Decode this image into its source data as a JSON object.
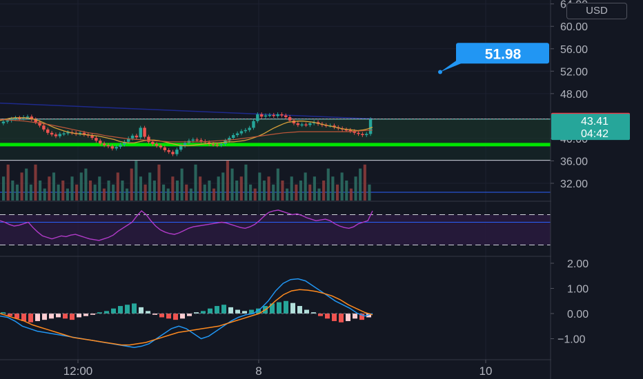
{
  "chart_data": {
    "type": "candlestick",
    "currency": "USD",
    "price_axis_labels": [
      "64.00",
      "60.00",
      "56.00",
      "52.00",
      "48.00",
      "40.00",
      "36.00",
      "32.00"
    ],
    "price_axis_values": [
      64,
      60,
      56,
      52,
      48,
      40,
      36,
      32
    ],
    "ylim": [
      28.8,
      64.7
    ],
    "time_axis_labels": [
      "12:00",
      "8",
      "10"
    ],
    "tags": {
      "high": {
        "label": "43.46",
        "value": 43.46,
        "color": "#f23645"
      },
      "last": {
        "label": "43.41",
        "value": 43.41,
        "countdown": "04:42",
        "color": "#26a69a"
      }
    },
    "target_callout": {
      "label": "51.98",
      "value": 51.98,
      "color": "#2196f3"
    },
    "horizontal_levels": [
      {
        "value": 43.46,
        "color": "#d1d4dc",
        "style": "solid"
      },
      {
        "value": 38.9,
        "color": "#00e600",
        "style": "thick"
      },
      {
        "value": 36.1,
        "color": "#d1d4dc",
        "style": "solid"
      },
      {
        "value": 30.4,
        "color": "#2962ff",
        "style": "solid"
      }
    ],
    "trendline": {
      "start": 46.3,
      "end": 43.5,
      "color": "#1e2a8c"
    },
    "closes": [
      43.0,
      43.2,
      43.5,
      43.7,
      43.6,
      43.8,
      43.9,
      43.4,
      42.9,
      42.3,
      41.6,
      41.0,
      40.7,
      40.4,
      40.8,
      40.9,
      41.1,
      41.0,
      40.8,
      41.0,
      40.7,
      40.5,
      40.1,
      39.6,
      39.1,
      38.8,
      38.6,
      38.2,
      38.5,
      38.9,
      39.4,
      40.0,
      40.5,
      40.2,
      41.9,
      40.3,
      39.4,
      39.0,
      38.7,
      38.4,
      37.9,
      37.6,
      37.2,
      38.0,
      38.7,
      39.2,
      39.6,
      39.8,
      39.7,
      39.5,
      39.3,
      39.0,
      38.9,
      38.8,
      39.0,
      39.6,
      40.1,
      40.6,
      40.9,
      41.3,
      41.5,
      41.9,
      43.1,
      44.3,
      43.9,
      44.1,
      44.2,
      44.0,
      44.3,
      44.1,
      43.8,
      43.2,
      42.7,
      42.4,
      42.5,
      42.4,
      42.7,
      42.9,
      42.6,
      42.4,
      42.3,
      42.3,
      42.0,
      41.8,
      41.6,
      41.5,
      41.3,
      41.0,
      40.8,
      40.6,
      40.8,
      43.41
    ],
    "ma_fast": [
      43.2,
      43.4,
      43.6,
      43.7,
      43.7,
      43.7,
      43.6,
      43.4,
      43.1,
      42.7,
      42.3,
      41.9,
      41.6,
      41.3,
      41.1,
      40.9,
      40.8,
      40.7,
      40.6,
      40.5,
      40.4,
      40.2,
      40.0,
      39.8,
      39.5,
      39.3,
      39.2,
      39.2,
      39.4,
      39.6,
      39.7,
      39.7,
      39.6,
      39.4,
      39.2,
      39.0,
      38.8,
      38.7,
      38.7,
      38.8,
      38.9,
      39.0,
      39.1,
      39.2,
      39.2,
      39.3,
      39.4,
      39.4,
      39.5,
      39.6,
      39.8,
      40.1,
      40.4,
      40.8,
      41.3,
      41.8,
      42.2,
      42.6,
      42.9,
      43.0,
      43.1,
      43.1,
      43.0,
      42.9,
      42.7,
      42.5,
      42.3,
      42.1,
      41.9,
      41.7,
      41.6,
      41.5,
      41.4,
      41.5,
      41.7,
      42.0
    ],
    "ma_slow": [
      43.4,
      43.3,
      43.2,
      43.1,
      42.9,
      42.7,
      42.5,
      42.2,
      41.9,
      41.6,
      41.3,
      41.0,
      40.8,
      40.5,
      40.3,
      40.1,
      39.9,
      39.8,
      39.7,
      39.6,
      39.5,
      39.4,
      39.4,
      39.4,
      39.4,
      39.4,
      39.5,
      39.6,
      39.7,
      39.8,
      40.0,
      40.2,
      40.4,
      40.6,
      40.8,
      41.0,
      41.1,
      41.2,
      41.2,
      41.2,
      41.2,
      41.2,
      41.2,
      41.2,
      41.3,
      41.4,
      41.5
    ],
    "volume": [
      6,
      9,
      5,
      4,
      7,
      8,
      4,
      9,
      5,
      3,
      6,
      7,
      4,
      5,
      3,
      6,
      4,
      7,
      8,
      5,
      4,
      6,
      3,
      5,
      4,
      7,
      5,
      3,
      8,
      10,
      6,
      4,
      7,
      5,
      9,
      4,
      3,
      6,
      5,
      8,
      4,
      3,
      9,
      6,
      4,
      5,
      3,
      6,
      7,
      10,
      8,
      5,
      6,
      9,
      4,
      3,
      7,
      5,
      6,
      4,
      8,
      5,
      3,
      6,
      4,
      5,
      7,
      4,
      6,
      3,
      5,
      8,
      6,
      4,
      7,
      5,
      3,
      6,
      8,
      9,
      4
    ],
    "rsi": [
      62,
      60,
      57,
      55,
      56,
      58,
      60,
      53,
      47,
      42,
      40,
      38,
      40,
      42,
      41,
      43,
      44,
      42,
      40,
      38,
      37,
      36,
      38,
      40,
      43,
      48,
      52,
      56,
      60,
      68,
      75,
      70,
      62,
      55,
      50,
      47,
      45,
      44,
      46,
      49,
      52,
      54,
      55,
      56,
      57,
      58,
      59,
      60,
      59,
      57,
      55,
      53,
      52,
      54,
      57,
      62,
      68,
      73,
      75,
      76,
      74,
      72,
      70,
      71,
      69,
      66,
      64,
      62,
      63,
      64,
      62,
      58,
      55,
      53,
      52,
      54,
      58,
      60,
      62,
      75
    ],
    "rsi_bands": [
      70,
      30
    ],
    "macd_axis_labels": [
      "2.00",
      "1.00",
      "0.00",
      "−1.00"
    ],
    "macd_axis_values": [
      2,
      1,
      0,
      -1
    ],
    "macd": [
      -0.1,
      -0.15,
      -0.3,
      -0.5,
      -0.6,
      -0.7,
      -0.75,
      -0.8,
      -0.85,
      -0.9,
      -0.95,
      -1.0,
      -1.05,
      -1.1,
      -1.15,
      -1.2,
      -1.25,
      -1.3,
      -1.35,
      -1.3,
      -1.2,
      -1.0,
      -0.8,
      -0.6,
      -0.5,
      -0.6,
      -0.8,
      -1.0,
      -0.9,
      -0.7,
      -0.5,
      -0.3,
      -0.15,
      -0.05,
      0.0,
      0.2,
      0.5,
      0.9,
      1.2,
      1.35,
      1.38,
      1.3,
      1.1,
      0.9,
      0.7,
      0.5,
      0.35,
      0.2,
      0.0,
      -0.1,
      0.0
    ],
    "macd_signal": [
      0.0,
      -0.1,
      -0.2,
      -0.3,
      -0.45,
      -0.55,
      -0.65,
      -0.75,
      -0.85,
      -0.95,
      -1.0,
      -1.05,
      -1.1,
      -1.15,
      -1.2,
      -1.25,
      -1.25,
      -1.2,
      -1.15,
      -1.05,
      -0.95,
      -0.85,
      -0.75,
      -0.7,
      -0.65,
      -0.6,
      -0.55,
      -0.5,
      -0.4,
      -0.3,
      -0.2,
      -0.1,
      0.0,
      0.2,
      0.5,
      0.75,
      0.9,
      0.95,
      0.93,
      0.88,
      0.8,
      0.7,
      0.55,
      0.35,
      0.2,
      0.05,
      -0.05
    ],
    "macd_hist": [
      0.05,
      -0.1,
      -0.2,
      -0.3,
      -0.35,
      -0.3,
      -0.25,
      -0.2,
      -0.15,
      -0.2,
      -0.25,
      -0.15,
      -0.1,
      -0.05,
      0.05,
      0.1,
      0.2,
      0.3,
      0.35,
      0.4,
      0.25,
      0.1,
      -0.05,
      -0.15,
      -0.2,
      -0.25,
      -0.2,
      -0.1,
      0.05,
      0.1,
      0.2,
      0.3,
      0.35,
      0.25,
      0.15,
      0.1,
      0.15,
      0.2,
      0.3,
      0.4,
      0.45,
      0.5,
      0.42,
      0.3,
      0.15,
      0.05,
      -0.1,
      -0.2,
      -0.3,
      -0.35,
      -0.3,
      -0.2,
      -0.25,
      -0.15
    ]
  }
}
